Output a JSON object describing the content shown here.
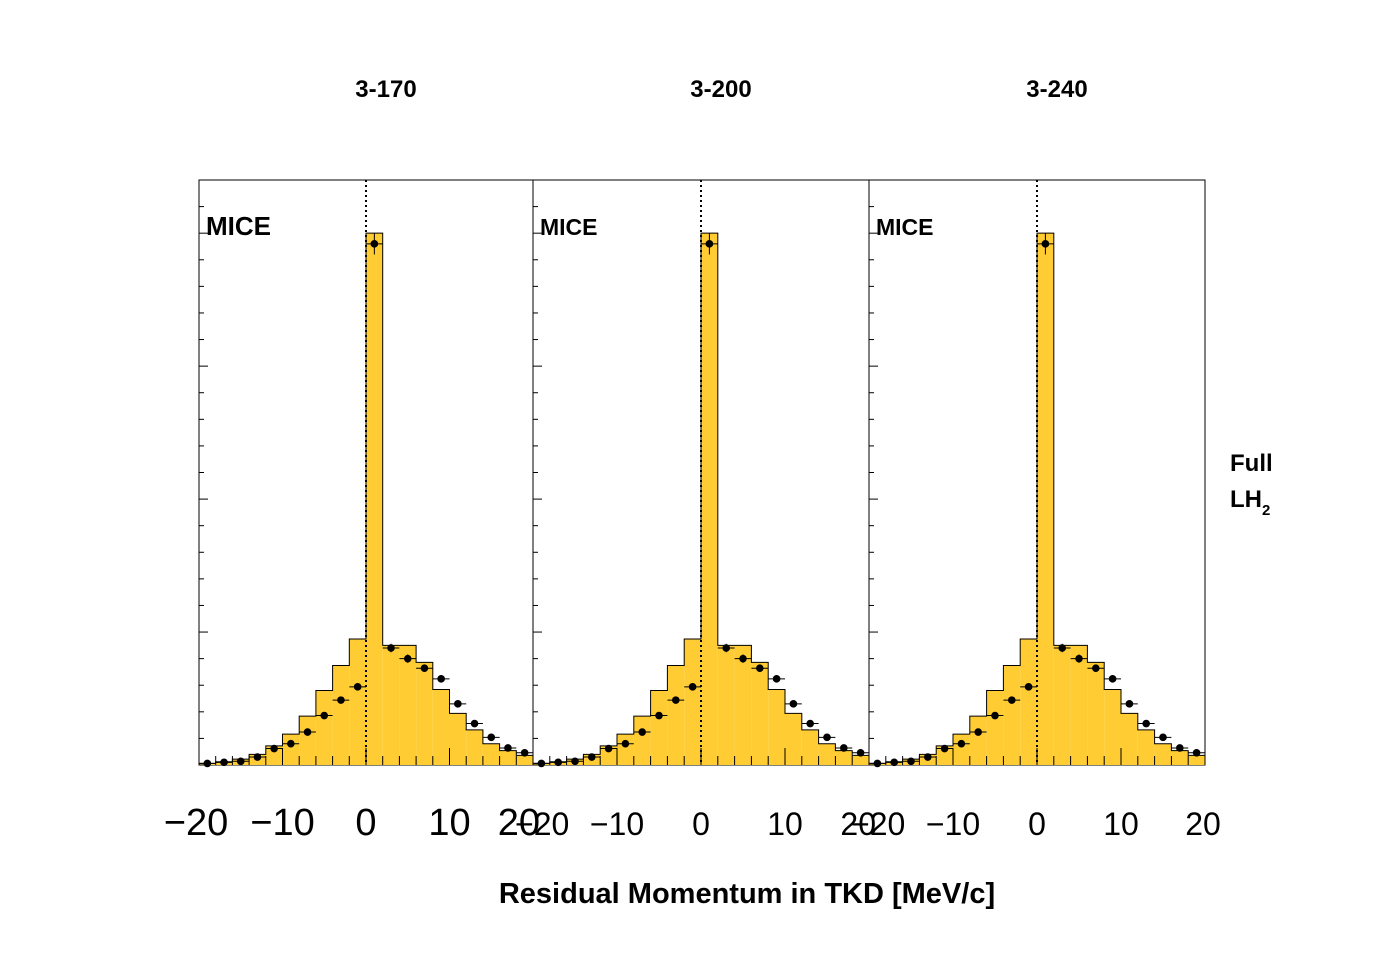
{
  "chart_data": {
    "type": "bar",
    "xlabel": "Residual Momentum in TKD [MeV/c]",
    "xlim": [
      -20,
      20
    ],
    "x_ticks": [
      "−20",
      "−10",
      "0",
      "10",
      "20"
    ],
    "bin_edges": [
      -20,
      -18,
      -16,
      -14,
      -12,
      -10,
      -8,
      -6,
      -4,
      -2,
      0,
      2,
      4,
      6,
      8,
      10,
      12,
      14,
      16,
      18,
      20
    ],
    "reference_line_x": 0,
    "side_label": {
      "line1": "Full",
      "line2_main": "LH",
      "line2_sub": "2"
    },
    "panels": [
      {
        "title": "3-170",
        "label": "MICE",
        "histogram": [
          0.3,
          0.6,
          1.1,
          2.0,
          3.6,
          5.8,
          9.2,
          14.0,
          18.7,
          23.7,
          100.0,
          22.5,
          22.5,
          19.3,
          14.2,
          9.7,
          6.6,
          4.0,
          2.7,
          1.8
        ],
        "data": [
          0.3,
          0.5,
          0.7,
          1.5,
          3.1,
          4.0,
          6.2,
          9.3,
          12.2,
          14.7,
          98.0,
          22.0,
          20.0,
          18.2,
          16.2,
          11.5,
          7.8,
          5.2,
          3.2,
          2.3
        ],
        "data_err": [
          0.1,
          0.1,
          0.1,
          0.2,
          0.3,
          0.3,
          0.4,
          0.4,
          0.5,
          0.5,
          2.0,
          0.8,
          0.8,
          0.7,
          0.7,
          0.5,
          0.4,
          0.3,
          0.2,
          0.2
        ]
      },
      {
        "title": "3-200",
        "label": "MICE",
        "histogram": [
          0.3,
          0.6,
          1.1,
          2.0,
          3.6,
          5.8,
          9.2,
          14.0,
          18.7,
          23.7,
          100.0,
          22.5,
          22.5,
          19.3,
          14.2,
          9.7,
          6.6,
          4.0,
          2.7,
          1.8
        ],
        "data": [
          0.3,
          0.5,
          0.7,
          1.5,
          3.1,
          4.0,
          6.2,
          9.3,
          12.2,
          14.7,
          98.0,
          22.0,
          20.0,
          18.2,
          16.2,
          11.5,
          7.8,
          5.2,
          3.2,
          2.3
        ],
        "data_err": [
          0.1,
          0.1,
          0.1,
          0.2,
          0.3,
          0.3,
          0.4,
          0.4,
          0.5,
          0.5,
          2.0,
          0.8,
          0.8,
          0.7,
          0.7,
          0.5,
          0.4,
          0.3,
          0.2,
          0.2
        ]
      },
      {
        "title": "3-240",
        "label": "MICE",
        "histogram": [
          0.3,
          0.6,
          1.1,
          2.0,
          3.6,
          5.8,
          9.2,
          14.0,
          18.7,
          23.7,
          100.0,
          22.5,
          22.5,
          19.3,
          14.2,
          9.7,
          6.6,
          4.0,
          2.7,
          1.8
        ],
        "data": [
          0.3,
          0.5,
          0.7,
          1.5,
          3.1,
          4.0,
          6.2,
          9.3,
          12.2,
          14.7,
          98.0,
          22.0,
          20.0,
          18.2,
          16.2,
          11.5,
          7.8,
          5.2,
          3.2,
          2.3
        ],
        "data_err": [
          0.1,
          0.1,
          0.1,
          0.2,
          0.3,
          0.3,
          0.4,
          0.4,
          0.5,
          0.5,
          2.0,
          0.8,
          0.8,
          0.7,
          0.7,
          0.5,
          0.4,
          0.3,
          0.2,
          0.2
        ]
      }
    ],
    "colors": {
      "fill": "#ffcc33",
      "outline": "#000000",
      "marker": "#000000"
    }
  }
}
